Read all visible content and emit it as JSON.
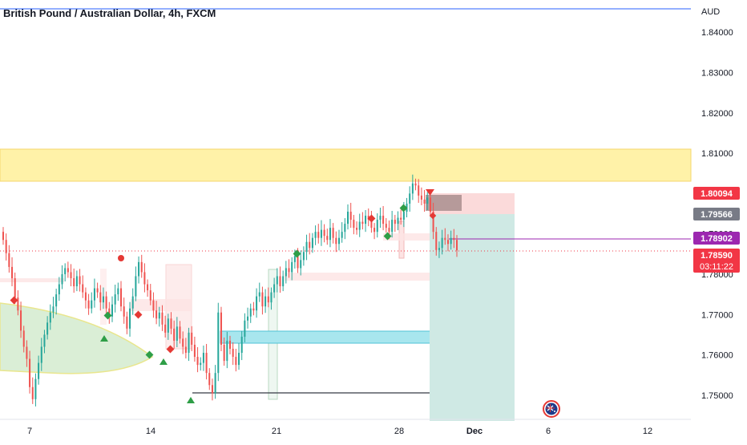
{
  "chart_title": "British Pound / Australian Dollar, 4h, FXCM",
  "currency_label": "AUD",
  "colors": {
    "up": "#26a69a",
    "down": "#ef5350",
    "supply_zone": "#fff2a8",
    "blue_line": "#2962ff",
    "purple": "#9c27b0",
    "stop_zone": "#fbdada",
    "target_zone": "#cfe9e4",
    "cyan_zone": "#a8e6ee"
  },
  "price_tags": [
    {
      "name": "entry-price",
      "value": "1.80094",
      "color": "#f23645"
    },
    {
      "name": "grey-level",
      "value": "1.79566",
      "color": "#787b86"
    },
    {
      "name": "purple-level",
      "value": "1.78902",
      "color": "#9c27b0"
    },
    {
      "name": "last-price",
      "value": "1.78590",
      "color": "#f23645",
      "sub": "03:11:22"
    }
  ],
  "chart_data": {
    "type": "candlestick",
    "title": "British Pound / Australian Dollar, 4h, FXCM",
    "timeframe": "4h",
    "ylim": [
      1.744,
      1.848
    ],
    "y_ticks": [
      "1.84000",
      "1.83000",
      "1.82000",
      "1.81000",
      "1.80000",
      "1.79000",
      "1.78000",
      "1.77000",
      "1.76000",
      "1.75000"
    ],
    "x_ticks": [
      "7",
      "14",
      "21",
      "28",
      "Dec",
      "6",
      "12"
    ],
    "last_price": 1.7859,
    "levels": {
      "supply_zone": [
        1.8045,
        1.813
      ],
      "entry": 1.80094,
      "grey": 1.79566,
      "purple": 1.78902,
      "cyan_zone": [
        1.7625,
        1.7642
      ],
      "black_line": 1.7479
    },
    "closes": [
      1.7885,
      1.7852,
      1.7818,
      1.779,
      1.7742,
      1.771,
      1.766,
      1.762,
      1.759,
      1.752,
      1.749,
      1.754,
      1.758,
      1.762,
      1.765,
      1.768,
      1.7705,
      1.772,
      1.775,
      1.7775,
      1.78,
      1.7815,
      1.7805,
      1.779,
      1.777,
      1.7795,
      1.7775,
      1.7755,
      1.7735,
      1.7715,
      1.7735,
      1.7765,
      1.7755,
      1.773,
      1.7745,
      1.7715,
      1.7695,
      1.7725,
      1.775,
      1.7765,
      1.772,
      1.7695,
      1.7665,
      1.7715,
      1.7745,
      1.7795,
      1.783,
      1.7805,
      1.7775,
      1.776,
      1.7735,
      1.771,
      1.769,
      1.7705,
      1.7675,
      1.7655,
      1.769,
      1.7665,
      1.7635,
      1.767,
      1.764,
      1.762,
      1.7605,
      1.7655,
      1.7625,
      1.7595,
      1.7575,
      1.758,
      1.7605,
      1.7555,
      1.7525,
      1.7505,
      1.7555,
      1.7705,
      1.7625,
      1.7585,
      1.7635,
      1.7615,
      1.7595,
      1.7575,
      1.7605,
      1.7645,
      1.7685,
      1.7695,
      1.7715,
      1.771,
      1.7745,
      1.7755,
      1.772,
      1.7745,
      1.773,
      1.7755,
      1.7775,
      1.7795,
      1.777,
      1.7795,
      1.7815,
      1.7805,
      1.783,
      1.7845,
      1.7815,
      1.7835,
      1.7855,
      1.788,
      1.7865,
      1.789,
      1.7905,
      1.789,
      1.791,
      1.7895,
      1.7885,
      1.7915,
      1.789,
      1.7875,
      1.789,
      1.7905,
      1.7925,
      1.7955,
      1.7935,
      1.7915,
      1.791,
      1.793,
      1.7925,
      1.7945,
      1.7935,
      1.7915,
      1.7905,
      1.7935,
      1.7945,
      1.7925,
      1.7915,
      1.7905,
      1.7935,
      1.7925,
      1.794,
      1.7935,
      1.7955,
      1.7975,
      1.8,
      1.8025,
      1.802,
      1.7995,
      1.7985,
      1.7975,
      1.799,
      1.7955,
      1.7905,
      1.786,
      1.7865,
      1.789,
      1.7885,
      1.7875,
      1.789,
      1.7885,
      1.7859
    ]
  }
}
